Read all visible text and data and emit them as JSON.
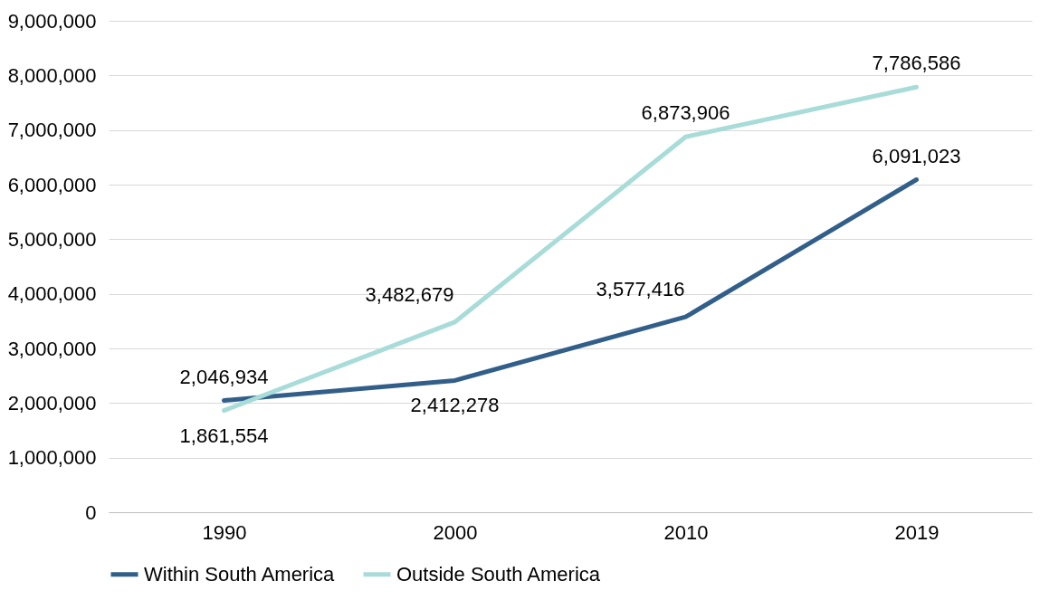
{
  "chart_data": {
    "type": "line",
    "categories": [
      "1990",
      "2000",
      "2010",
      "2019"
    ],
    "series": [
      {
        "name": "Within South America",
        "color": "#325f8a",
        "values": [
          2046934,
          2412278,
          3577416,
          6091023
        ],
        "value_labels": [
          "2,046,934",
          "2,412,278",
          "3,577,416",
          "6,091,023"
        ]
      },
      {
        "name": "Outside South America",
        "color": "#a8dcd8",
        "values": [
          1861554,
          3482679,
          6873906,
          7786586
        ],
        "value_labels": [
          "1,861,554",
          "3,482,679",
          "6,873,906",
          "7,786,586"
        ]
      }
    ],
    "ylim": [
      0,
      9000000
    ],
    "yticks": [
      0,
      {
        "value": 1000000,
        "label": "1,000,000"
      },
      {
        "value": 2000000,
        "label": "2,000,000"
      },
      {
        "value": 3000000,
        "label": "3,000,000"
      },
      {
        "value": 4000000,
        "label": "4,000,000"
      },
      {
        "value": 5000000,
        "label": "5,000,000"
      },
      {
        "value": 6000000,
        "label": "6,000,000"
      },
      {
        "value": 7000000,
        "label": "7,000,000"
      },
      {
        "value": 8000000,
        "label": "8,000,000"
      },
      {
        "value": 9000000,
        "label": "9,000,000"
      }
    ],
    "grid": "y",
    "legend": "bottom",
    "line_style": "solid"
  }
}
